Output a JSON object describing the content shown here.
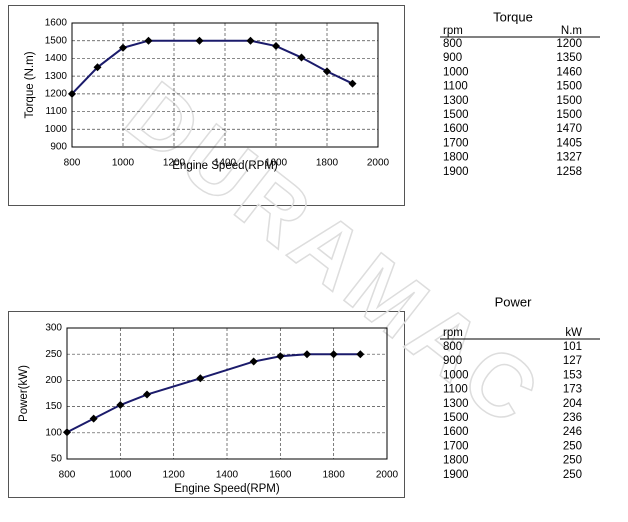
{
  "chart_data": [
    {
      "type": "line",
      "x_label": "Engine Speed(RPM)",
      "y_label": "Torque (N.m)",
      "x": [
        800,
        900,
        1000,
        1100,
        1300,
        1500,
        1600,
        1700,
        1800,
        1900
      ],
      "series": [
        {
          "color": "#1b1b6b",
          "values": [
            1200,
            1350,
            1460,
            1500,
            1500,
            1500,
            1470,
            1405,
            1327,
            1258
          ]
        }
      ],
      "xlim": [
        800,
        2000
      ],
      "xticks": [
        800,
        1000,
        1200,
        1400,
        1600,
        1800,
        2000
      ],
      "ylim": [
        900,
        1600
      ],
      "yticks": [
        900,
        1000,
        1100,
        1200,
        1300,
        1400,
        1500,
        1600
      ],
      "grid": true
    },
    {
      "type": "line",
      "x_label": "Engine Speed(RPM)",
      "y_label": "Power(kW)",
      "x": [
        800,
        900,
        1000,
        1100,
        1300,
        1500,
        1600,
        1700,
        1800,
        1900
      ],
      "series": [
        {
          "color": "#1b1b6b",
          "values": [
            101,
            127,
            153,
            173,
            204,
            236,
            246,
            250,
            250,
            250
          ]
        }
      ],
      "xlim": [
        800,
        2000
      ],
      "xticks": [
        800,
        1000,
        1200,
        1400,
        1600,
        1800,
        2000
      ],
      "ylim": [
        50,
        300
      ],
      "yticks": [
        50,
        100,
        150,
        200,
        250,
        300
      ],
      "grid": true
    }
  ],
  "tables": [
    {
      "title": "Torque",
      "columns": [
        "rpm",
        "N.m"
      ],
      "rows": [
        [
          800,
          1200
        ],
        [
          900,
          1350
        ],
        [
          1000,
          1460
        ],
        [
          1100,
          1500
        ],
        [
          1300,
          1500
        ],
        [
          1500,
          1500
        ],
        [
          1600,
          1470
        ],
        [
          1700,
          1405
        ],
        [
          1800,
          1327
        ],
        [
          1900,
          1258
        ]
      ]
    },
    {
      "title": "Power",
      "columns": [
        "rpm",
        "kW"
      ],
      "rows": [
        [
          800,
          101
        ],
        [
          900,
          127
        ],
        [
          1000,
          153
        ],
        [
          1100,
          173
        ],
        [
          1300,
          204
        ],
        [
          1500,
          236
        ],
        [
          1600,
          246
        ],
        [
          1700,
          250
        ],
        [
          1800,
          250
        ],
        [
          1900,
          250
        ]
      ]
    }
  ],
  "watermark": "DURAMAC"
}
